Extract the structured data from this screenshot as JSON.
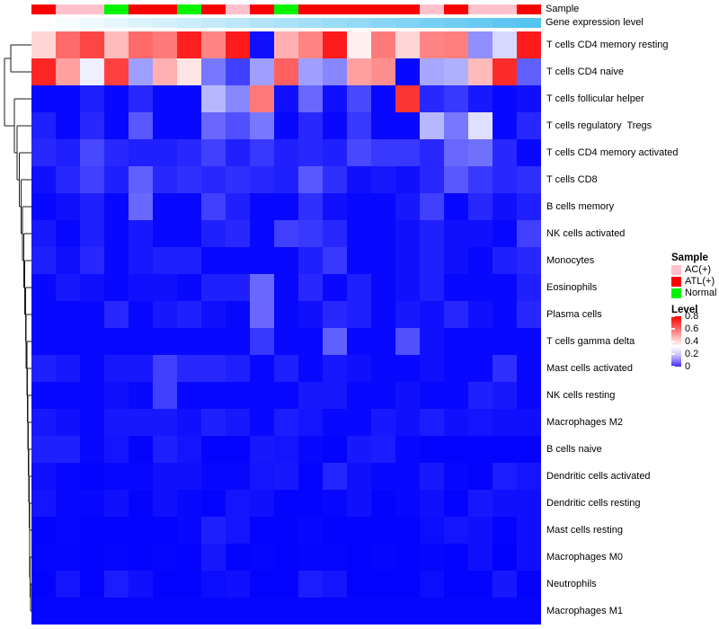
{
  "labels": {
    "sample_bar": "Sample",
    "gene_expression_bar": "Gene expression level"
  },
  "legend": {
    "sample": {
      "title": "Sample",
      "items": [
        {
          "label": "AC(+)",
          "color": "#FFC1CB"
        },
        {
          "label": "ATL(+)",
          "color": "#FB0000"
        },
        {
          "label": "Normal",
          "color": "#00F400"
        }
      ]
    },
    "level": {
      "title": "Level",
      "ticks": [
        "0.8",
        "0.6",
        "0.4",
        "0.2",
        "0"
      ]
    }
  },
  "chart_data": {
    "type": "heatmap",
    "title": "",
    "rows": [
      "T cells CD4 memory resting",
      "T cells CD4 naive",
      "T cells follicular helper",
      "T cells regulatory  Tregs",
      "T cells CD4 memory activated",
      "T cells CD8",
      "B cells memory",
      "NK cells activated",
      "Monocytes",
      "Eosinophils",
      "Plasma cells",
      "T cells gamma delta",
      "Mast cells activated",
      "NK cells resting",
      "Macrophages M2",
      "B cells naive",
      "Dendritic cells activated",
      "Dendritic cells resting",
      "Mast cells resting",
      "Macrophages M0",
      "Neutrophils",
      "Macrophages M1"
    ],
    "n_cols": 21,
    "column_annotations": {
      "sample_group": [
        "ATL(+)",
        "AC(+)",
        "AC(+)",
        "Normal",
        "ATL(+)",
        "ATL(+)",
        "Normal",
        "ATL(+)",
        "AC(+)",
        "ATL(+)",
        "Normal",
        "ATL(+)",
        "ATL(+)",
        "ATL(+)",
        "ATL(+)",
        "ATL(+)",
        "AC(+)",
        "ATL(+)",
        "AC(+)",
        "AC(+)",
        "ATL(+)"
      ],
      "gene_expression_level": [
        0,
        0.05,
        0.1,
        0.15,
        0.2,
        0.25,
        0.3,
        0.35,
        0.4,
        0.45,
        0.5,
        0.55,
        0.6,
        0.65,
        0.7,
        0.75,
        0.8,
        0.85,
        0.9,
        0.95,
        1
      ]
    },
    "value_range": [
      0,
      0.8
    ],
    "colormap": {
      "low": "#0000FE",
      "mid": "#FFFFFF",
      "high": "#FE0000",
      "mid_at_value": 0.32
    },
    "annotation_colors": {
      "AC(+)": "#FFC1CB",
      "ATL(+)": "#FB0000",
      "Normal": "#00F400"
    },
    "gene_expression_colors": {
      "low": "#FFFFFF",
      "high": "#55C4F0"
    },
    "values": [
      [
        0.4,
        0.6,
        0.67,
        0.45,
        0.6,
        0.57,
        0.74,
        0.55,
        0.75,
        0.02,
        0.47,
        0.55,
        0.75,
        0.35,
        0.57,
        0.4,
        0.55,
        0.56,
        0.18,
        0.27,
        0.75
      ],
      [
        0.73,
        0.5,
        0.3,
        0.68,
        0.2,
        0.47,
        0.37,
        0.15,
        0.08,
        0.2,
        0.62,
        0.2,
        0.17,
        0.5,
        0.53,
        0.01,
        0.21,
        0.22,
        0.45,
        0.72,
        0.12
      ],
      [
        0.01,
        0.01,
        0.04,
        0.01,
        0.05,
        0.01,
        0.01,
        0.23,
        0.17,
        0.57,
        0.02,
        0.13,
        0.02,
        0.09,
        0.01,
        0.7,
        0.05,
        0.07,
        0.03,
        0.01,
        0.02
      ],
      [
        0.04,
        0.01,
        0.05,
        0.01,
        0.11,
        0.01,
        0.01,
        0.13,
        0.1,
        0.15,
        0.01,
        0.05,
        0.01,
        0.07,
        0.01,
        0.01,
        0.23,
        0.15,
        0.28,
        0.01,
        0.05
      ],
      [
        0.05,
        0.04,
        0.09,
        0.05,
        0.04,
        0.04,
        0.05,
        0.08,
        0.04,
        0.07,
        0.04,
        0.05,
        0.04,
        0.09,
        0.07,
        0.07,
        0.05,
        0.13,
        0.14,
        0.05,
        0.01
      ],
      [
        0.02,
        0.05,
        0.08,
        0.04,
        0.12,
        0.05,
        0.06,
        0.05,
        0.06,
        0.05,
        0.04,
        0.11,
        0.06,
        0.02,
        0.03,
        0.02,
        0.05,
        0.11,
        0.07,
        0.05,
        0.06
      ],
      [
        0.01,
        0.02,
        0.04,
        0.01,
        0.13,
        0.01,
        0.01,
        0.08,
        0.04,
        0.01,
        0.01,
        0.06,
        0.02,
        0.01,
        0.01,
        0.03,
        0.08,
        0.01,
        0.05,
        0.02,
        0.04
      ],
      [
        0.03,
        0.01,
        0.04,
        0.01,
        0.03,
        0.01,
        0.01,
        0.04,
        0.05,
        0.01,
        0.08,
        0.07,
        0.05,
        0.01,
        0.01,
        0.02,
        0.04,
        0.02,
        0.02,
        0.01,
        0.08
      ],
      [
        0.04,
        0.02,
        0.05,
        0.01,
        0.03,
        0.04,
        0.04,
        0.01,
        0.01,
        0.01,
        0.01,
        0.04,
        0.07,
        0.01,
        0.01,
        0.02,
        0.04,
        0.02,
        0.01,
        0.04,
        0.05
      ],
      [
        0.01,
        0.03,
        0.02,
        0.01,
        0.02,
        0.02,
        0.01,
        0.04,
        0.04,
        0.13,
        0.01,
        0.05,
        0.01,
        0.04,
        0.01,
        0.02,
        0.04,
        0.01,
        0.01,
        0.01,
        0.04
      ],
      [
        0.01,
        0.01,
        0.01,
        0.05,
        0.01,
        0.03,
        0.04,
        0.02,
        0.01,
        0.13,
        0.01,
        0.02,
        0.05,
        0.04,
        0.01,
        0.03,
        0.02,
        0.05,
        0.02,
        0.01,
        0.05
      ],
      [
        0.01,
        0.01,
        0.01,
        0.01,
        0.01,
        0.01,
        0.01,
        0.01,
        0.01,
        0.07,
        0.01,
        0.01,
        0.12,
        0.01,
        0.01,
        0.1,
        0.02,
        0.01,
        0.01,
        0.01,
        0.01
      ],
      [
        0.04,
        0.03,
        0.01,
        0.03,
        0.03,
        0.08,
        0.05,
        0.05,
        0.04,
        0.01,
        0.04,
        0.01,
        0.03,
        0.02,
        0.01,
        0.01,
        0.02,
        0.01,
        0.01,
        0.06,
        0.01
      ],
      [
        0.01,
        0.01,
        0.01,
        0.02,
        0.01,
        0.08,
        0.01,
        0.01,
        0.01,
        0.01,
        0.01,
        0.03,
        0.03,
        0.01,
        0.01,
        0.02,
        0.01,
        0.01,
        0.04,
        0.03,
        0.01
      ],
      [
        0.03,
        0.02,
        0.01,
        0.03,
        0.03,
        0.03,
        0.02,
        0.04,
        0.03,
        0.01,
        0.035,
        0.025,
        0.01,
        0.01,
        0.03,
        0.02,
        0.035,
        0.02,
        0.025,
        0.02,
        0.02
      ],
      [
        0.04,
        0.04,
        0.01,
        0.025,
        0.005,
        0.04,
        0.025,
        0.005,
        0.005,
        0.03,
        0.025,
        0.01,
        0.005,
        0.03,
        0.035,
        0.01,
        0.005,
        0.005,
        0.005,
        0.005,
        0.005
      ],
      [
        0.02,
        0.01,
        0.005,
        0.01,
        0.01,
        0.02,
        0.02,
        0.01,
        0.01,
        0.025,
        0.03,
        0.005,
        0.045,
        0.02,
        0.01,
        0.01,
        0.03,
        0.01,
        0.005,
        0.035,
        0.025
      ],
      [
        0.025,
        0.01,
        0.01,
        0.02,
        0.005,
        0.02,
        0.01,
        0.005,
        0.025,
        0.02,
        0.005,
        0.005,
        0.01,
        0.02,
        0.005,
        0.01,
        0.02,
        0.005,
        0.03,
        0.02,
        0.02
      ],
      [
        0.005,
        0.01,
        0.005,
        0.005,
        0.005,
        0.005,
        0.01,
        0.04,
        0.025,
        0.005,
        0.005,
        0.01,
        0.005,
        0.005,
        0.005,
        0.005,
        0.015,
        0.025,
        0.02,
        0.005,
        0.02
      ],
      [
        0.008,
        0.008,
        0.005,
        0.008,
        0.005,
        0.008,
        0.005,
        0.03,
        0.005,
        0.008,
        0.005,
        0.008,
        0.008,
        0.005,
        0.008,
        0.005,
        0.008,
        0.005,
        0.02,
        0.003,
        0.02
      ],
      [
        0.005,
        0.025,
        0.005,
        0.035,
        0.02,
        0.005,
        0.005,
        0.015,
        0.02,
        0.005,
        0.005,
        0.035,
        0.025,
        0.005,
        0.005,
        0.005,
        0.015,
        0.005,
        0.005,
        0.03,
        0.005
      ],
      [
        0.008,
        0.008,
        0.008,
        0.008,
        0.008,
        0.008,
        0.008,
        0.008,
        0.008,
        0.008,
        0.008,
        0.008,
        0.008,
        0.008,
        0.008,
        0.008,
        0.008,
        0.008,
        0.008,
        0.008,
        0.008
      ]
    ]
  }
}
